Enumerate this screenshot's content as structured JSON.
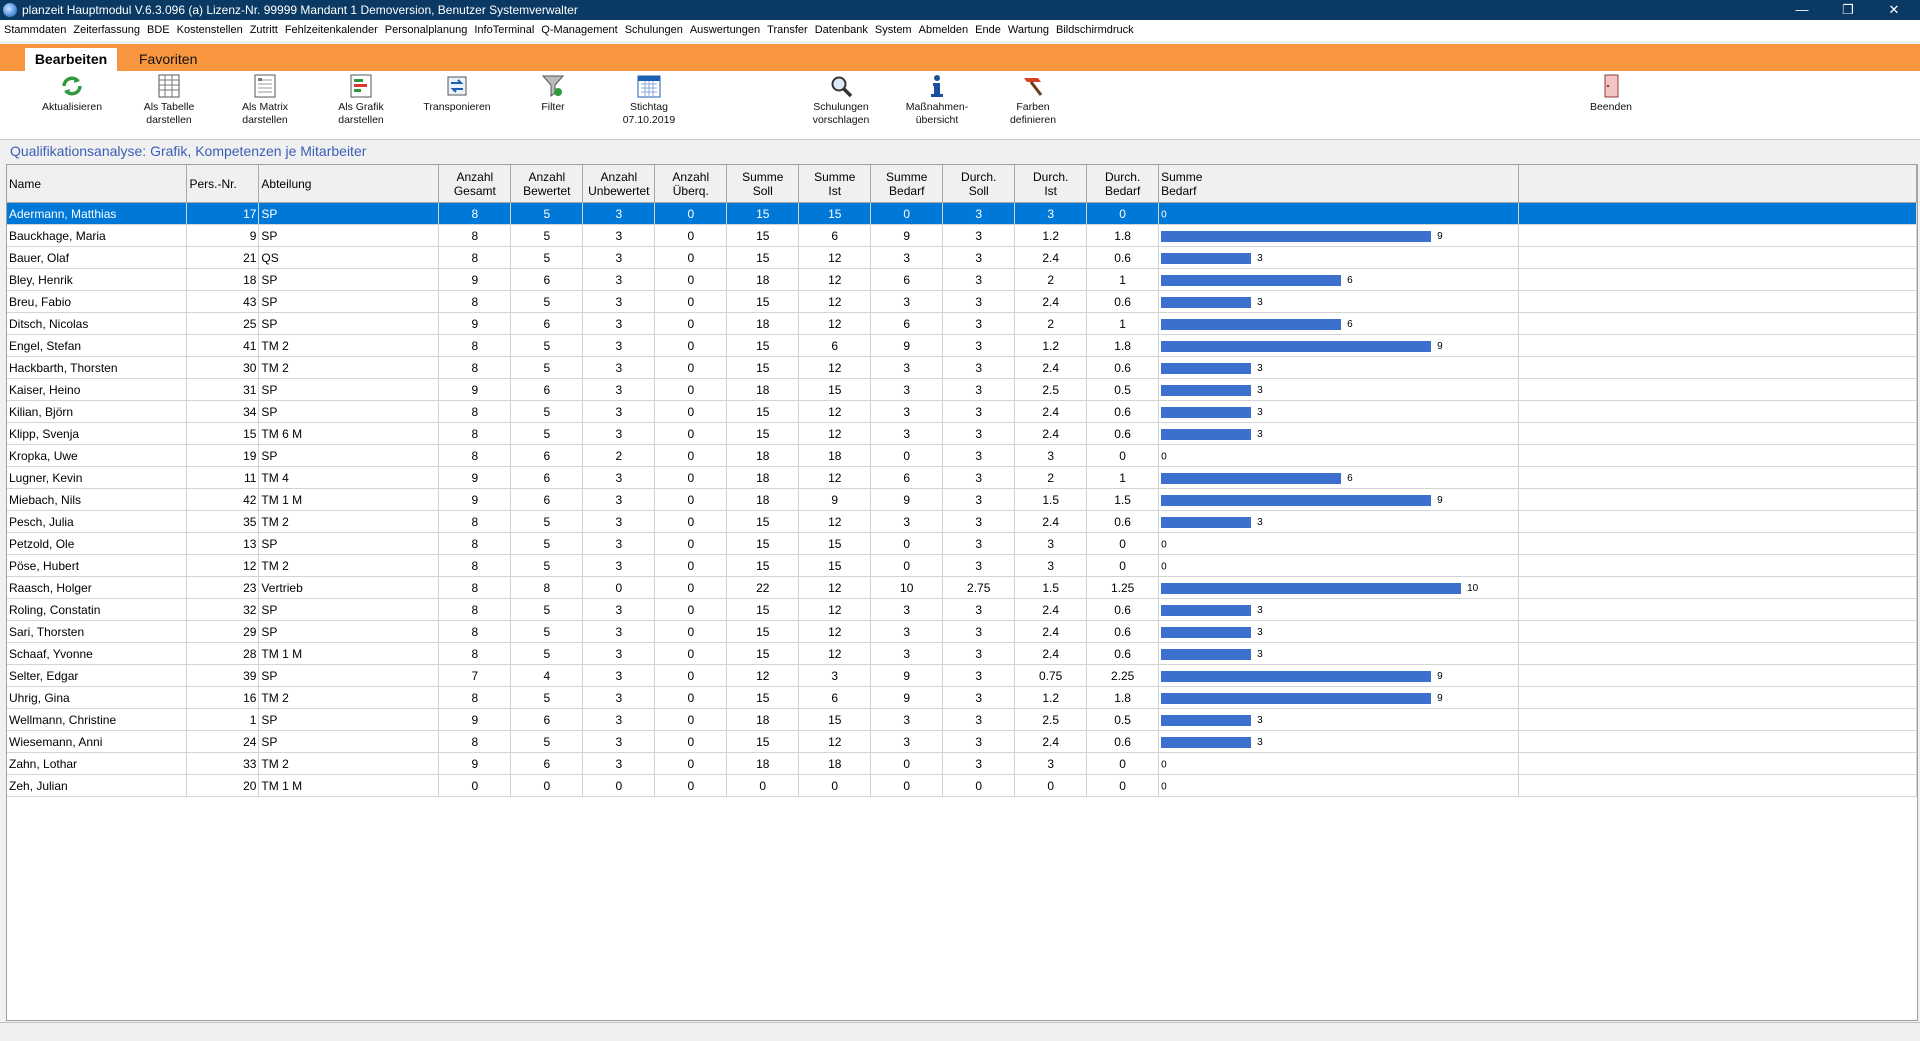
{
  "window": {
    "title": "planzeit Hauptmodul V.6.3.096 (a) Lizenz-Nr. 99999  Mandant 1 Demoversion, Benutzer Systemverwalter",
    "minimize": "—",
    "maximize": "❐",
    "close": "✕"
  },
  "menu": [
    "Stammdaten",
    "Zeiterfassung",
    "BDE",
    "Kostenstellen",
    "Zutritt",
    "Fehlzeitenkalender",
    "Personalplanung",
    "InfoTerminal",
    "Q-Management",
    "Schulungen",
    "Auswertungen",
    "Transfer",
    "Datenbank",
    "System",
    "Abmelden",
    "Ende",
    "Wartung",
    "Bildschirmdruck"
  ],
  "ribbon_tabs": {
    "active": "Bearbeiten",
    "other": "Favoriten"
  },
  "ribbon": {
    "aktualisieren": "Aktualisieren",
    "als_tabelle": "Als Tabelle\ndarstellen",
    "als_matrix": "Als Matrix\ndarstellen",
    "als_grafik": "Als Grafik\ndarstellen",
    "transponieren": "Transponieren",
    "filter": "Filter",
    "stichtag": "Stichtag\n07.10.2019",
    "schulungen": "Schulungen\nvorschlagen",
    "massnahmen": "Maßnahmen-\nübersicht",
    "farben": "Farben\ndefinieren",
    "beenden": "Beenden"
  },
  "heading": "Qualifikationsanalyse: Grafik, Kompetenzen je Mitarbeiter",
  "columns": [
    [
      "Name",
      ""
    ],
    [
      "Pers.-Nr.",
      ""
    ],
    [
      "Abteilung",
      ""
    ],
    [
      "Anzahl",
      "Gesamt"
    ],
    [
      "Anzahl",
      "Bewertet"
    ],
    [
      "Anzahl",
      "Unbewertet"
    ],
    [
      "Anzahl",
      "Überq."
    ],
    [
      "Summe",
      "Soll"
    ],
    [
      "Summe",
      "Ist"
    ],
    [
      "Summe",
      "Bedarf"
    ],
    [
      "Durch.",
      "Soll"
    ],
    [
      "Durch.",
      "Ist"
    ],
    [
      "Durch.",
      "Bedarf"
    ],
    [
      "Summe",
      "Bedarf"
    ],
    [
      "",
      ""
    ]
  ],
  "accent_color": "#0078d7",
  "bar_color": "#3d6fcf",
  "rows": [
    [
      "Adermann, Matthias",
      "17",
      "SP",
      "8",
      "5",
      "3",
      "0",
      "15",
      "15",
      "0",
      "3",
      "3",
      "0"
    ],
    [
      "Bauckhage, Maria",
      "9",
      "SP",
      "8",
      "5",
      "3",
      "0",
      "15",
      "6",
      "9",
      "3",
      "1.2",
      "1.8"
    ],
    [
      "Bauer, Olaf",
      "21",
      "QS",
      "8",
      "5",
      "3",
      "0",
      "15",
      "12",
      "3",
      "3",
      "2.4",
      "0.6"
    ],
    [
      "Bley, Henrik",
      "18",
      "SP",
      "9",
      "6",
      "3",
      "0",
      "18",
      "12",
      "6",
      "3",
      "2",
      "1"
    ],
    [
      "Breu, Fabio",
      "43",
      "SP",
      "8",
      "5",
      "3",
      "0",
      "15",
      "12",
      "3",
      "3",
      "2.4",
      "0.6"
    ],
    [
      "Ditsch, Nicolas",
      "25",
      "SP",
      "9",
      "6",
      "3",
      "0",
      "18",
      "12",
      "6",
      "3",
      "2",
      "1"
    ],
    [
      "Engel, Stefan",
      "41",
      "TM 2",
      "8",
      "5",
      "3",
      "0",
      "15",
      "6",
      "9",
      "3",
      "1.2",
      "1.8"
    ],
    [
      "Hackbarth, Thorsten",
      "30",
      "TM 2",
      "8",
      "5",
      "3",
      "0",
      "15",
      "12",
      "3",
      "3",
      "2.4",
      "0.6"
    ],
    [
      "Kaiser, Heino",
      "31",
      "SP",
      "9",
      "6",
      "3",
      "0",
      "18",
      "15",
      "3",
      "3",
      "2.5",
      "0.5"
    ],
    [
      "Kilian, Björn",
      "34",
      "SP",
      "8",
      "5",
      "3",
      "0",
      "15",
      "12",
      "3",
      "3",
      "2.4",
      "0.6"
    ],
    [
      "Klipp, Svenja",
      "15",
      "TM 6 M",
      "8",
      "5",
      "3",
      "0",
      "15",
      "12",
      "3",
      "3",
      "2.4",
      "0.6"
    ],
    [
      "Kropka, Uwe",
      "19",
      "SP",
      "8",
      "6",
      "2",
      "0",
      "18",
      "18",
      "0",
      "3",
      "3",
      "0"
    ],
    [
      "Lugner, Kevin",
      "11",
      "TM 4",
      "9",
      "6",
      "3",
      "0",
      "18",
      "12",
      "6",
      "3",
      "2",
      "1"
    ],
    [
      "Miebach, Nils",
      "42",
      "TM 1 M",
      "9",
      "6",
      "3",
      "0",
      "18",
      "9",
      "9",
      "3",
      "1.5",
      "1.5"
    ],
    [
      "Pesch, Julia",
      "35",
      "TM 2",
      "8",
      "5",
      "3",
      "0",
      "15",
      "12",
      "3",
      "3",
      "2.4",
      "0.6"
    ],
    [
      "Petzold, Ole",
      "13",
      "SP",
      "8",
      "5",
      "3",
      "0",
      "15",
      "15",
      "0",
      "3",
      "3",
      "0"
    ],
    [
      "Pöse, Hubert",
      "12",
      "TM 2",
      "8",
      "5",
      "3",
      "0",
      "15",
      "15",
      "0",
      "3",
      "3",
      "0"
    ],
    [
      "Raasch, Holger",
      "23",
      "Vertrieb",
      "8",
      "8",
      "0",
      "0",
      "22",
      "12",
      "10",
      "2.75",
      "1.5",
      "1.25"
    ],
    [
      "Roling, Constatin",
      "32",
      "SP",
      "8",
      "5",
      "3",
      "0",
      "15",
      "12",
      "3",
      "3",
      "2.4",
      "0.6"
    ],
    [
      "Sari, Thorsten",
      "29",
      "SP",
      "8",
      "5",
      "3",
      "0",
      "15",
      "12",
      "3",
      "3",
      "2.4",
      "0.6"
    ],
    [
      "Schaaf, Yvonne",
      "28",
      "TM 1 M",
      "8",
      "5",
      "3",
      "0",
      "15",
      "12",
      "3",
      "3",
      "2.4",
      "0.6"
    ],
    [
      "Selter, Edgar",
      "39",
      "SP",
      "7",
      "4",
      "3",
      "0",
      "12",
      "3",
      "9",
      "3",
      "0.75",
      "2.25"
    ],
    [
      "Uhrig, Gina",
      "16",
      "TM 2",
      "8",
      "5",
      "3",
      "0",
      "15",
      "6",
      "9",
      "3",
      "1.2",
      "1.8"
    ],
    [
      "Wellmann, Christine",
      "1",
      "SP",
      "9",
      "6",
      "3",
      "0",
      "18",
      "15",
      "3",
      "3",
      "2.5",
      "0.5"
    ],
    [
      "Wiesemann, Anni",
      "24",
      "SP",
      "8",
      "5",
      "3",
      "0",
      "15",
      "12",
      "3",
      "3",
      "2.4",
      "0.6"
    ],
    [
      "Zahn, Lothar",
      "33",
      "TM 2",
      "9",
      "6",
      "3",
      "0",
      "18",
      "18",
      "0",
      "3",
      "3",
      "0"
    ],
    [
      "Zeh, Julian",
      "20",
      "TM 1 M",
      "0",
      "0",
      "0",
      "0",
      "0",
      "0",
      "0",
      "0",
      "0",
      "0"
    ]
  ],
  "bar_values": [
    0,
    9,
    3,
    6,
    3,
    6,
    9,
    3,
    3,
    3,
    3,
    0,
    6,
    9,
    3,
    0,
    0,
    10,
    3,
    3,
    3,
    9,
    9,
    3,
    3,
    0,
    0
  ],
  "bar_max": 10
}
